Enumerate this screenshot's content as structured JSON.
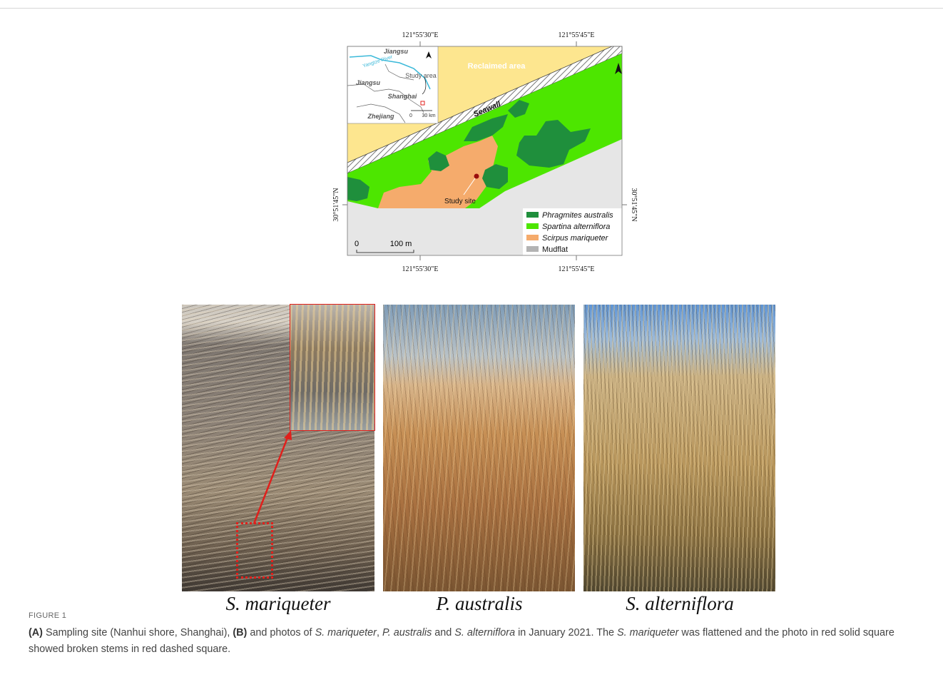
{
  "map": {
    "coords_top": [
      "121°55'30\"E",
      "121°55'45\"E"
    ],
    "coords_bottom": [
      "121°55'30\"E",
      "121°55'45\"E"
    ],
    "coord_left": "30°51'45\"N",
    "coord_right": "30°51'45\"N",
    "reclaimed": "Reclaimed area",
    "seawall": "Seawall",
    "study_site": "Study site",
    "inset": {
      "jiangsu_top": "Jiangsu",
      "river": "Yangtze River",
      "study_area": "Study area",
      "jiangsu": "Jiangsu",
      "shanghai": "Shanghai",
      "zhejiang": "Zhejiang",
      "scale": [
        "0",
        "30 km"
      ]
    },
    "scale": [
      "0",
      "100 m"
    ],
    "legend": [
      {
        "label": "Phragmites australis",
        "color": "#1f8f3c",
        "italic": true
      },
      {
        "label": "Spartina alterniflora",
        "color": "#4de600",
        "italic": true
      },
      {
        "label": "Scirpus mariqueter",
        "color": "#f5ab6c",
        "italic": true
      },
      {
        "label": "Mudflat",
        "color": "#b3b3b3",
        "italic": false
      }
    ]
  },
  "photos": {
    "captions": [
      "S. mariqueter",
      "P. australis",
      "S. alterniflora"
    ]
  },
  "caption": {
    "label": "FIGURE 1",
    "segments": [
      {
        "text": "(A)",
        "bold": true
      },
      {
        "text": " Sampling site (Nanhui shore, Shanghai), "
      },
      {
        "text": "(B)",
        "bold": true
      },
      {
        "text": " and photos of "
      },
      {
        "text": "S. mariqueter",
        "italic": true
      },
      {
        "text": ", "
      },
      {
        "text": "P. australis",
        "italic": true
      },
      {
        "text": " and "
      },
      {
        "text": "S. alterniflora",
        "italic": true
      },
      {
        "text": " in January 2021. The "
      },
      {
        "text": "S. mariqueter",
        "italic": true
      },
      {
        "text": " was flattened and the photo in red solid square showed broken stems in red dashed square."
      }
    ]
  }
}
